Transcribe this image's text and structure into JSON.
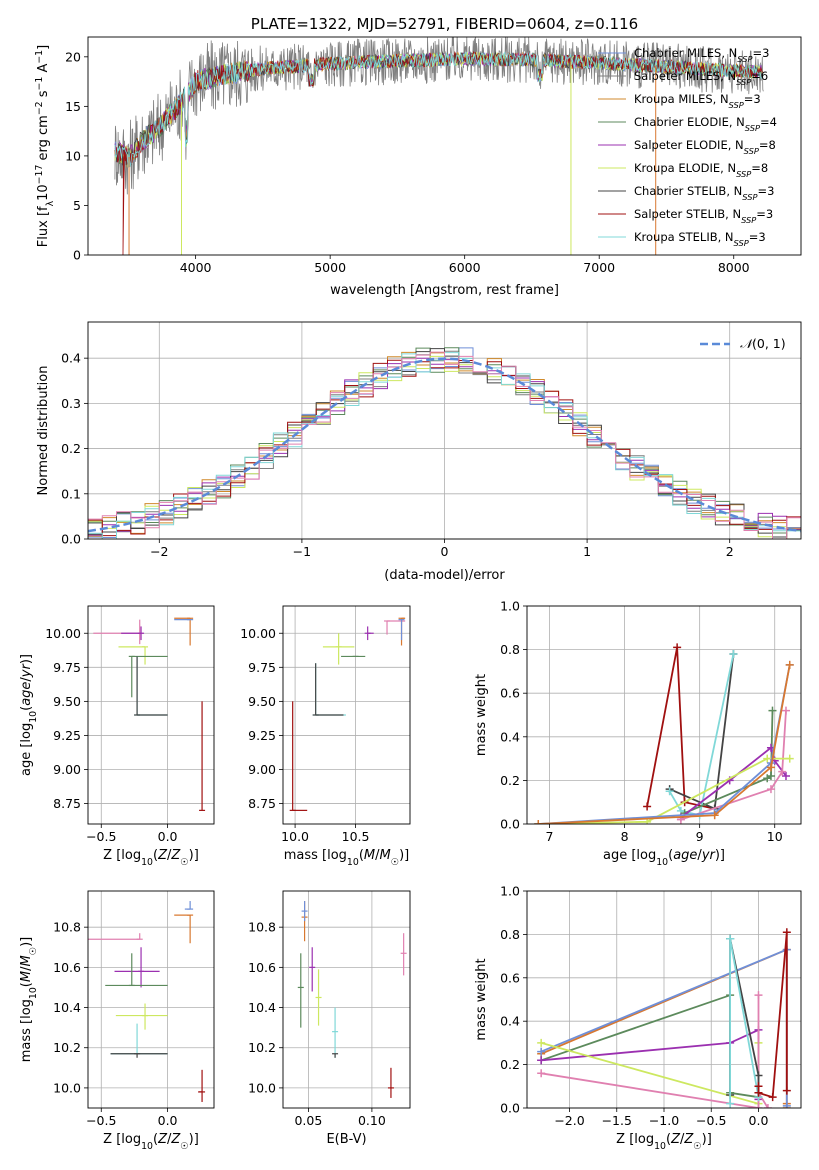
{
  "colors": {
    "Chabrier MILES": "#6f8fd8",
    "Salpeter MILES": "#7f7f7f",
    "Kroupa MILES": "#d08a2c",
    "Chabrier ELODIE": "#5c8a5c",
    "Salpeter ELODIE": "#9b30b0",
    "Kroupa ELODIE": "#cde860",
    "Chabrier STELIB": "#444444",
    "Salpeter STELIB": "#a01010",
    "Kroupa STELIB": "#80d8d8",
    "pink": "#e080b0",
    "orange": "#d87830",
    "normal": "#5a8ad8"
  },
  "chart_data": [
    {
      "type": "line",
      "id": "spectrum",
      "title": "PLATE=1322, MJD=52791, FIBERID=0604, z=0.116",
      "xlabel": "wavelength [Angstrom, rest frame]",
      "ylabel": "Flux [fλ10⁻¹⁷ erg cm⁻² s⁻¹ A⁻¹]",
      "xlim": [
        3200,
        8500
      ],
      "ylim": [
        0,
        22
      ],
      "xticks": [
        4000,
        5000,
        6000,
        7000,
        8000
      ],
      "yticks": [
        0,
        5,
        10,
        15,
        20
      ],
      "grid": false,
      "legend_position": "right",
      "continuum_x": [
        3400,
        3500,
        3600,
        3700,
        3800,
        3900,
        4000,
        4200,
        4500,
        5000,
        5500,
        6000,
        6500,
        7000,
        7500,
        8000,
        8200
      ],
      "continuum_y": [
        10.5,
        9.8,
        11.5,
        12.5,
        14.0,
        15.5,
        17.5,
        18.2,
        18.8,
        19.3,
        19.6,
        19.8,
        19.7,
        19.4,
        19.0,
        18.6,
        18.5
      ],
      "legend": [
        "Chabrier MILES, N_SSP=3",
        "Salpeter MILES, N_SSP=6",
        "Kroupa MILES, N_SSP=3",
        "Chabrier ELODIE, N_SSP=4",
        "Salpeter ELODIE, N_SSP=8",
        "Kroupa ELODIE, N_SSP=8",
        "Chabrier STELIB, N_SSP=3",
        "Salpeter STELIB, N_SSP=3",
        "Kroupa STELIB, N_SSP=3"
      ],
      "legend_colors": [
        "#6f8fd8",
        "#7f7f7f",
        "#d08a2c",
        "#5c8a5c",
        "#9b30b0",
        "#cde860",
        "#444444",
        "#a01010",
        "#80d8d8"
      ]
    },
    {
      "type": "histogram",
      "id": "residuals",
      "xlabel": "(data-model)/error",
      "ylabel": "Normed distribution",
      "xlim": [
        -2.5,
        2.5
      ],
      "ylim": [
        0,
        0.48
      ],
      "xticks": [
        -2,
        -1,
        0,
        1,
        2
      ],
      "yticks": [
        0.0,
        0.1,
        0.2,
        0.3,
        0.4
      ],
      "grid": true,
      "bin_width": 0.1,
      "legend": [
        "𝒩(0, 1)"
      ],
      "legend_position": "top-right"
    },
    {
      "type": "errorbar",
      "id": "age_vs_Z",
      "xlabel": "Z [log₁₀(Z/Z☉)]",
      "ylabel": "age  [log₁₀(age/yr)]",
      "xlim": [
        -0.6,
        0.35
      ],
      "ylim": [
        8.6,
        10.2
      ],
      "xticks": [
        -0.5,
        0.0
      ],
      "yticks": [
        8.75,
        9.0,
        9.25,
        9.5,
        9.75,
        10.0
      ],
      "grid": true,
      "points": [
        {
          "x": -0.21,
          "y": 10.0,
          "xlo": 0.35,
          "xhi": 0.0,
          "ylo": 0.08,
          "yhi": 0.1,
          "color": "#e080b0"
        },
        {
          "x": 0.17,
          "y": 10.11,
          "xlo": 0.12,
          "xhi": 0.0,
          "ylo": 0.2,
          "yhi": 0.0,
          "color": "#d87830"
        },
        {
          "x": 0.17,
          "y": 10.1,
          "xlo": 0.12,
          "xhi": 0.0,
          "ylo": 0.0,
          "yhi": 0.0,
          "color": "#6f8fd8"
        },
        {
          "x": -0.2,
          "y": 10.0,
          "xlo": 0.15,
          "xhi": 0.0,
          "ylo": 0.05,
          "yhi": 0.05,
          "color": "#9b30b0"
        },
        {
          "x": -0.17,
          "y": 9.9,
          "xlo": 0.2,
          "xhi": 0.0,
          "ylo": 0.13,
          "yhi": 0.0,
          "color": "#cde860"
        },
        {
          "x": -0.27,
          "y": 9.83,
          "xlo": 0.0,
          "xhi": 0.27,
          "ylo": 0.3,
          "yhi": 0.0,
          "color": "#5c8a5c"
        },
        {
          "x": -0.23,
          "y": 9.4,
          "xlo": 0.0,
          "xhi": 0.23,
          "ylo": 0.0,
          "yhi": 0.43,
          "color": "#80d8d8"
        },
        {
          "x": -0.23,
          "y": 9.4,
          "xlo": 0.0,
          "xhi": 0.23,
          "ylo": 0.0,
          "yhi": 0.43,
          "color": "#444444"
        },
        {
          "x": 0.26,
          "y": 8.7,
          "xlo": 0.0,
          "xhi": 0.0,
          "ylo": 0.0,
          "yhi": 0.8,
          "color": "#a01010"
        }
      ]
    },
    {
      "type": "errorbar",
      "id": "age_vs_mass",
      "xlabel": "mass [log₁₀(M/M☉)]",
      "ylabel": "",
      "xlim": [
        9.9,
        10.95
      ],
      "ylim": [
        8.6,
        10.2
      ],
      "xticks": [
        10.0,
        10.5
      ],
      "yticks": [
        8.75,
        9.0,
        9.25,
        9.5,
        9.75,
        10.0
      ],
      "grid": true,
      "points": [
        {
          "x": 10.76,
          "y": 10.09,
          "xlo": 0.0,
          "xhi": 0.15,
          "ylo": 0.1,
          "yhi": 0.0,
          "color": "#e080b0"
        },
        {
          "x": 10.88,
          "y": 10.11,
          "xlo": 0.0,
          "xhi": 0.03,
          "ylo": 0.2,
          "yhi": 0.0,
          "color": "#d87830"
        },
        {
          "x": 10.88,
          "y": 10.1,
          "xlo": 0.0,
          "xhi": 0.0,
          "ylo": 0.15,
          "yhi": 0.0,
          "color": "#6f8fd8"
        },
        {
          "x": 10.6,
          "y": 10.0,
          "xlo": 0.0,
          "xhi": 0.05,
          "ylo": 0.05,
          "yhi": 0.05,
          "color": "#9b30b0"
        },
        {
          "x": 10.36,
          "y": 9.9,
          "xlo": 0.13,
          "xhi": 0.13,
          "ylo": 0.13,
          "yhi": 0.1,
          "color": "#cde860"
        },
        {
          "x": 10.5,
          "y": 9.83,
          "xlo": 0.12,
          "xhi": 0.08,
          "ylo": 0.0,
          "yhi": 0.0,
          "color": "#5c8a5c"
        },
        {
          "x": 10.17,
          "y": 9.4,
          "xlo": 0.0,
          "xhi": 0.25,
          "ylo": 0.0,
          "yhi": 0.38,
          "color": "#80d8d8"
        },
        {
          "x": 10.17,
          "y": 9.4,
          "xlo": 0.0,
          "xhi": 0.23,
          "ylo": 0.0,
          "yhi": 0.38,
          "color": "#444444"
        },
        {
          "x": 9.98,
          "y": 8.7,
          "xlo": 0.0,
          "xhi": 0.12,
          "ylo": 0.0,
          "yhi": 0.8,
          "color": "#a01010"
        }
      ]
    },
    {
      "type": "line",
      "id": "massweight_vs_age",
      "xlabel": "age  [log₁₀(age/yr)]",
      "ylabel": "mass weight",
      "xlim": [
        6.7,
        10.35
      ],
      "ylim": [
        0,
        1.0
      ],
      "xticks": [
        7,
        8,
        9,
        10
      ],
      "yticks": [
        0.0,
        0.2,
        0.4,
        0.6,
        0.8,
        1.0
      ],
      "grid": true,
      "series": [
        {
          "color": "#a01010",
          "x": [
            8.3,
            8.7,
            8.8,
            9.2
          ],
          "y": [
            0.08,
            0.81,
            0.1,
            0.07
          ]
        },
        {
          "color": "#444444",
          "x": [
            8.6,
            9.2,
            9.45
          ],
          "y": [
            0.16,
            0.07,
            0.78
          ]
        },
        {
          "color": "#80d8d8",
          "x": [
            8.6,
            8.75,
            9.0,
            9.45
          ],
          "y": [
            0.15,
            0.06,
            0.04,
            0.78
          ]
        },
        {
          "color": "#5c8a5c",
          "x": [
            8.8,
            9.9,
            9.95,
            9.97
          ],
          "y": [
            0.05,
            0.21,
            0.22,
            0.52
          ]
        },
        {
          "color": "#9b30b0",
          "x": [
            8.75,
            9.4,
            9.95,
            10.0,
            10.15
          ],
          "y": [
            0.03,
            0.2,
            0.35,
            0.29,
            0.22
          ]
        },
        {
          "color": "#e080b0",
          "x": [
            8.75,
            9.95,
            10.1,
            10.15
          ],
          "y": [
            0.02,
            0.16,
            0.24,
            0.52
          ]
        },
        {
          "color": "#cde860",
          "x": [
            6.85,
            8.3,
            9.9,
            10.2
          ],
          "y": [
            0.0,
            0.01,
            0.3,
            0.3
          ]
        },
        {
          "color": "#6f8fd8",
          "x": [
            6.85,
            9.2,
            9.95,
            10.2
          ],
          "y": [
            0.0,
            0.05,
            0.28,
            0.73
          ]
        },
        {
          "color": "#d87830",
          "x": [
            6.85,
            9.2,
            9.95,
            10.2
          ],
          "y": [
            0.0,
            0.04,
            0.26,
            0.73
          ]
        }
      ]
    },
    {
      "type": "errorbar",
      "id": "mass_vs_Z",
      "xlabel": "Z [log₁₀(Z/Z☉)]",
      "ylabel": "mass [log₁₀(M/M☉)]",
      "xlim": [
        -0.6,
        0.35
      ],
      "ylim": [
        9.9,
        10.98
      ],
      "xticks": [
        -0.5,
        0.0
      ],
      "yticks": [
        10.0,
        10.2,
        10.4,
        10.6,
        10.8
      ],
      "grid": true,
      "points": [
        {
          "x": -0.21,
          "y": 10.74,
          "xlo": 0.39,
          "xhi": 0.0,
          "ylo": 0.0,
          "yhi": 0.03,
          "color": "#e080b0"
        },
        {
          "x": 0.17,
          "y": 10.86,
          "xlo": 0.12,
          "xhi": 0.0,
          "ylo": 0.14,
          "yhi": 0.0,
          "color": "#d87830"
        },
        {
          "x": 0.17,
          "y": 10.89,
          "xlo": 0.04,
          "xhi": 0.0,
          "ylo": 0.0,
          "yhi": 0.04,
          "color": "#6f8fd8"
        },
        {
          "x": -0.2,
          "y": 10.58,
          "xlo": 0.2,
          "xhi": 0.14,
          "ylo": 0.08,
          "yhi": 0.12,
          "color": "#9b30b0"
        },
        {
          "x": -0.17,
          "y": 10.36,
          "xlo": 0.22,
          "xhi": 0.17,
          "ylo": 0.07,
          "yhi": 0.06,
          "color": "#cde860"
        },
        {
          "x": -0.27,
          "y": 10.51,
          "xlo": 0.2,
          "xhi": 0.27,
          "ylo": 0.0,
          "yhi": 0.16,
          "color": "#5c8a5c"
        },
        {
          "x": -0.23,
          "y": 10.17,
          "xlo": 0.2,
          "xhi": 0.23,
          "ylo": 0.0,
          "yhi": 0.15,
          "color": "#80d8d8"
        },
        {
          "x": -0.23,
          "y": 10.17,
          "xlo": 0.2,
          "xhi": 0.23,
          "ylo": 0.02,
          "yhi": 0.0,
          "color": "#444444"
        },
        {
          "x": 0.26,
          "y": 9.98,
          "xlo": 0.03,
          "xhi": 0.0,
          "ylo": 0.05,
          "yhi": 0.11,
          "color": "#a01010"
        }
      ]
    },
    {
      "type": "errorbar",
      "id": "mass_vs_ebv",
      "xlabel": "E(B-V)",
      "ylabel": "",
      "xlim": [
        0.03,
        0.13
      ],
      "ylim": [
        9.9,
        10.98
      ],
      "xticks": [
        0.05,
        0.1
      ],
      "yticks": [
        10.0,
        10.2,
        10.4,
        10.6,
        10.8
      ],
      "grid": true,
      "points": [
        {
          "x": 0.047,
          "y": 10.85,
          "ylo": 0.12,
          "yhi": 0.08,
          "color": "#d87830"
        },
        {
          "x": 0.047,
          "y": 10.88,
          "ylo": 0.05,
          "yhi": 0.05,
          "color": "#6f8fd8"
        },
        {
          "x": 0.053,
          "y": 10.6,
          "ylo": 0.12,
          "yhi": 0.1,
          "color": "#9b30b0"
        },
        {
          "x": 0.044,
          "y": 10.5,
          "ylo": 0.2,
          "yhi": 0.17,
          "color": "#5c8a5c"
        },
        {
          "x": 0.058,
          "y": 10.45,
          "ylo": 0.14,
          "yhi": 0.14,
          "color": "#cde860"
        },
        {
          "x": 0.071,
          "y": 10.28,
          "ylo": 0.13,
          "yhi": 0.12,
          "color": "#80d8d8"
        },
        {
          "x": 0.071,
          "y": 10.17,
          "ylo": 0.02,
          "yhi": 0.0,
          "color": "#444444"
        },
        {
          "x": 0.115,
          "y": 10.0,
          "ylo": 0.05,
          "yhi": 0.1,
          "color": "#a01010"
        },
        {
          "x": 0.125,
          "y": 10.67,
          "ylo": 0.11,
          "yhi": 0.1,
          "color": "#e080b0"
        }
      ]
    },
    {
      "type": "line",
      "id": "massweight_vs_Z",
      "xlabel": "Z [log₁₀(Z/Z☉)]",
      "ylabel": "mass weight",
      "xlim": [
        -2.45,
        0.45
      ],
      "ylim": [
        0,
        1.0
      ],
      "xticks": [
        -2.0,
        -1.5,
        -1.0,
        -0.5,
        0.0
      ],
      "yticks": [
        0.0,
        0.2,
        0.4,
        0.6,
        0.8,
        1.0
      ],
      "grid": true,
      "series": [
        {
          "color": "#d87830",
          "x": [
            -2.3,
            0.3,
            0.3,
            0.3
          ],
          "y": [
            0.25,
            0.73,
            0.02,
            0.0
          ]
        },
        {
          "color": "#6f8fd8",
          "x": [
            -2.3,
            0.3,
            0.3
          ],
          "y": [
            0.26,
            0.73,
            0.01
          ]
        },
        {
          "color": "#5c8a5c",
          "x": [
            -2.3,
            -0.3,
            -0.3,
            0.0
          ],
          "y": [
            0.22,
            0.52,
            0.07,
            0.05
          ]
        },
        {
          "color": "#9b30b0",
          "x": [
            -2.3,
            -0.3,
            0.0,
            0.0
          ],
          "y": [
            0.22,
            0.3,
            0.36,
            0.04
          ]
        },
        {
          "color": "#cde860",
          "x": [
            -2.3,
            0.0,
            0.0
          ],
          "y": [
            0.3,
            0.02,
            0.3
          ]
        },
        {
          "color": "#e080b0",
          "x": [
            -2.3,
            0.0,
            0.0,
            0.0,
            0.1
          ],
          "y": [
            0.16,
            0.0,
            0.52,
            0.07,
            0.0
          ]
        },
        {
          "color": "#444444",
          "x": [
            -0.3,
            -0.3,
            0.0,
            0.0
          ],
          "y": [
            0.06,
            0.78,
            0.15,
            0.07
          ]
        },
        {
          "color": "#80d8d8",
          "x": [
            -0.3,
            -0.3,
            0.0
          ],
          "y": [
            0.02,
            0.78,
            0.05
          ]
        },
        {
          "color": "#a01010",
          "x": [
            0.0,
            0.0,
            0.15,
            0.3,
            0.3
          ],
          "y": [
            0.1,
            0.07,
            0.05,
            0.81,
            0.08
          ]
        }
      ]
    }
  ]
}
